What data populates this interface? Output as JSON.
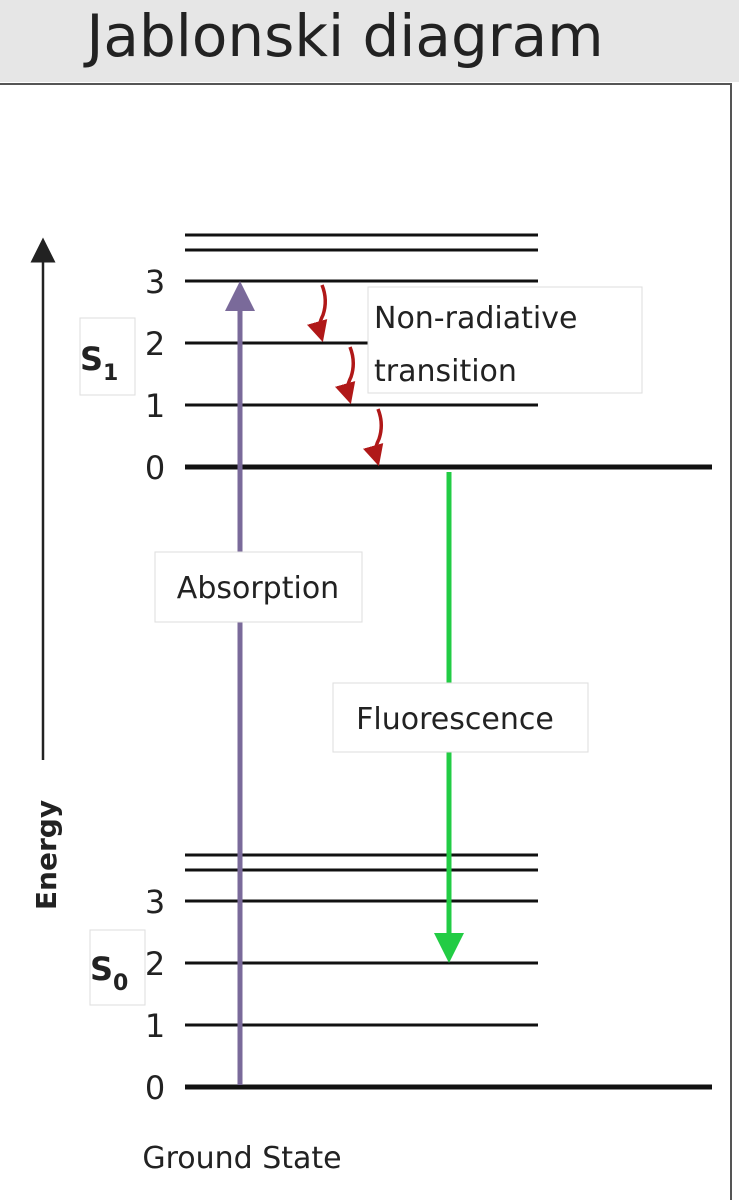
{
  "header": {
    "title": "Jablonski diagram"
  },
  "axis": {
    "label": "Energy"
  },
  "states": [
    {
      "symbol": "S",
      "subscript": "1",
      "levels": [
        "3",
        "2",
        "1",
        "0"
      ]
    },
    {
      "symbol": "S",
      "subscript": "0",
      "levels": [
        "3",
        "2",
        "1",
        "0"
      ]
    }
  ],
  "transitions": {
    "absorption": "Absorption",
    "fluorescence": "Fluorescence",
    "non_radiative": [
      "Non-radiative",
      "transition"
    ]
  },
  "footer": {
    "label": "Ground State"
  }
}
